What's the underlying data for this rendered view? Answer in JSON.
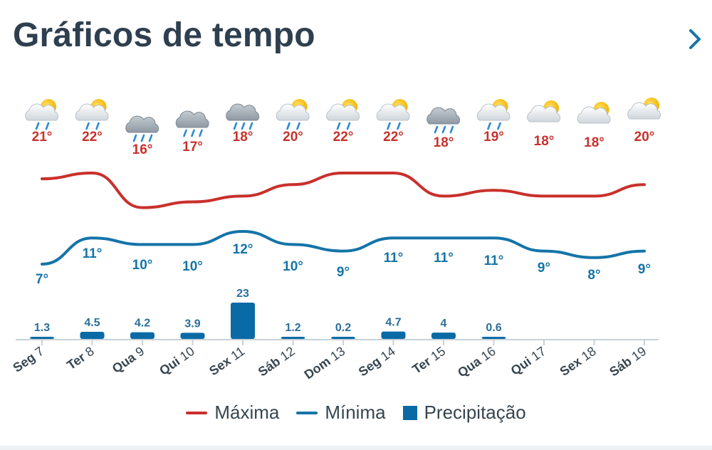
{
  "header": {
    "title": "Gráficos de tempo",
    "next_icon": "chevron-right-icon"
  },
  "colors": {
    "max": "#c9302c",
    "min": "#1474a8",
    "precip": "#0a6aa6",
    "axis": "#c9d1d8",
    "day_label": "#36454f"
  },
  "chart_data": {
    "type": "line",
    "categories": [
      "Seg 7",
      "Ter 8",
      "Qua 9",
      "Qui 10",
      "Sex 11",
      "Sáb 12",
      "Dom 13",
      "Seg 14",
      "Ter 15",
      "Qua 16",
      "Qui 17",
      "Sex 18",
      "Sáb 19"
    ],
    "weather_icons": [
      "partly-sunny-rain-icon",
      "partly-sunny-rain-icon",
      "cloud-rain-icon",
      "cloud-rain-icon",
      "cloud-heavy-rain-icon",
      "partly-sunny-rain-icon",
      "partly-sunny-rain-icon",
      "partly-sunny-rain-icon",
      "cloud-rain-icon",
      "partly-sunny-rain-icon",
      "partly-cloudy-icon",
      "partly-cloudy-icon",
      "partly-cloudy-icon"
    ],
    "series": [
      {
        "name": "Máxima",
        "type": "line",
        "values": [
          21,
          22,
          16,
          17,
          18,
          20,
          22,
          22,
          18,
          19,
          18,
          18,
          20
        ],
        "labels": [
          "21°",
          "22°",
          "16°",
          "17°",
          "18°",
          "20°",
          "22°",
          "22°",
          "18°",
          "19°",
          "18°",
          "18°",
          "20°"
        ]
      },
      {
        "name": "Mínima",
        "type": "line",
        "values": [
          7,
          11,
          10,
          10,
          12,
          10,
          9,
          11,
          11,
          11,
          9,
          8,
          9
        ],
        "labels": [
          "7°",
          "11°",
          "10°",
          "10°",
          "12°",
          "10°",
          "9°",
          "11°",
          "11°",
          "11°",
          "9°",
          "8°",
          "9°"
        ]
      },
      {
        "name": "Precipitação",
        "type": "bar",
        "values": [
          1.3,
          4.5,
          4.2,
          3.9,
          23,
          1.2,
          0.2,
          4.7,
          4,
          0.6,
          0,
          0,
          0
        ],
        "labels": [
          "1.3",
          "4.5",
          "4.2",
          "3.9",
          "23",
          "1.2",
          "0.2",
          "4.7",
          "4",
          "0.6",
          "",
          "",
          ""
        ]
      }
    ],
    "legend": [
      "Máxima",
      "Mínima",
      "Precipitação"
    ],
    "legend_position": "bottom",
    "grid": false
  }
}
